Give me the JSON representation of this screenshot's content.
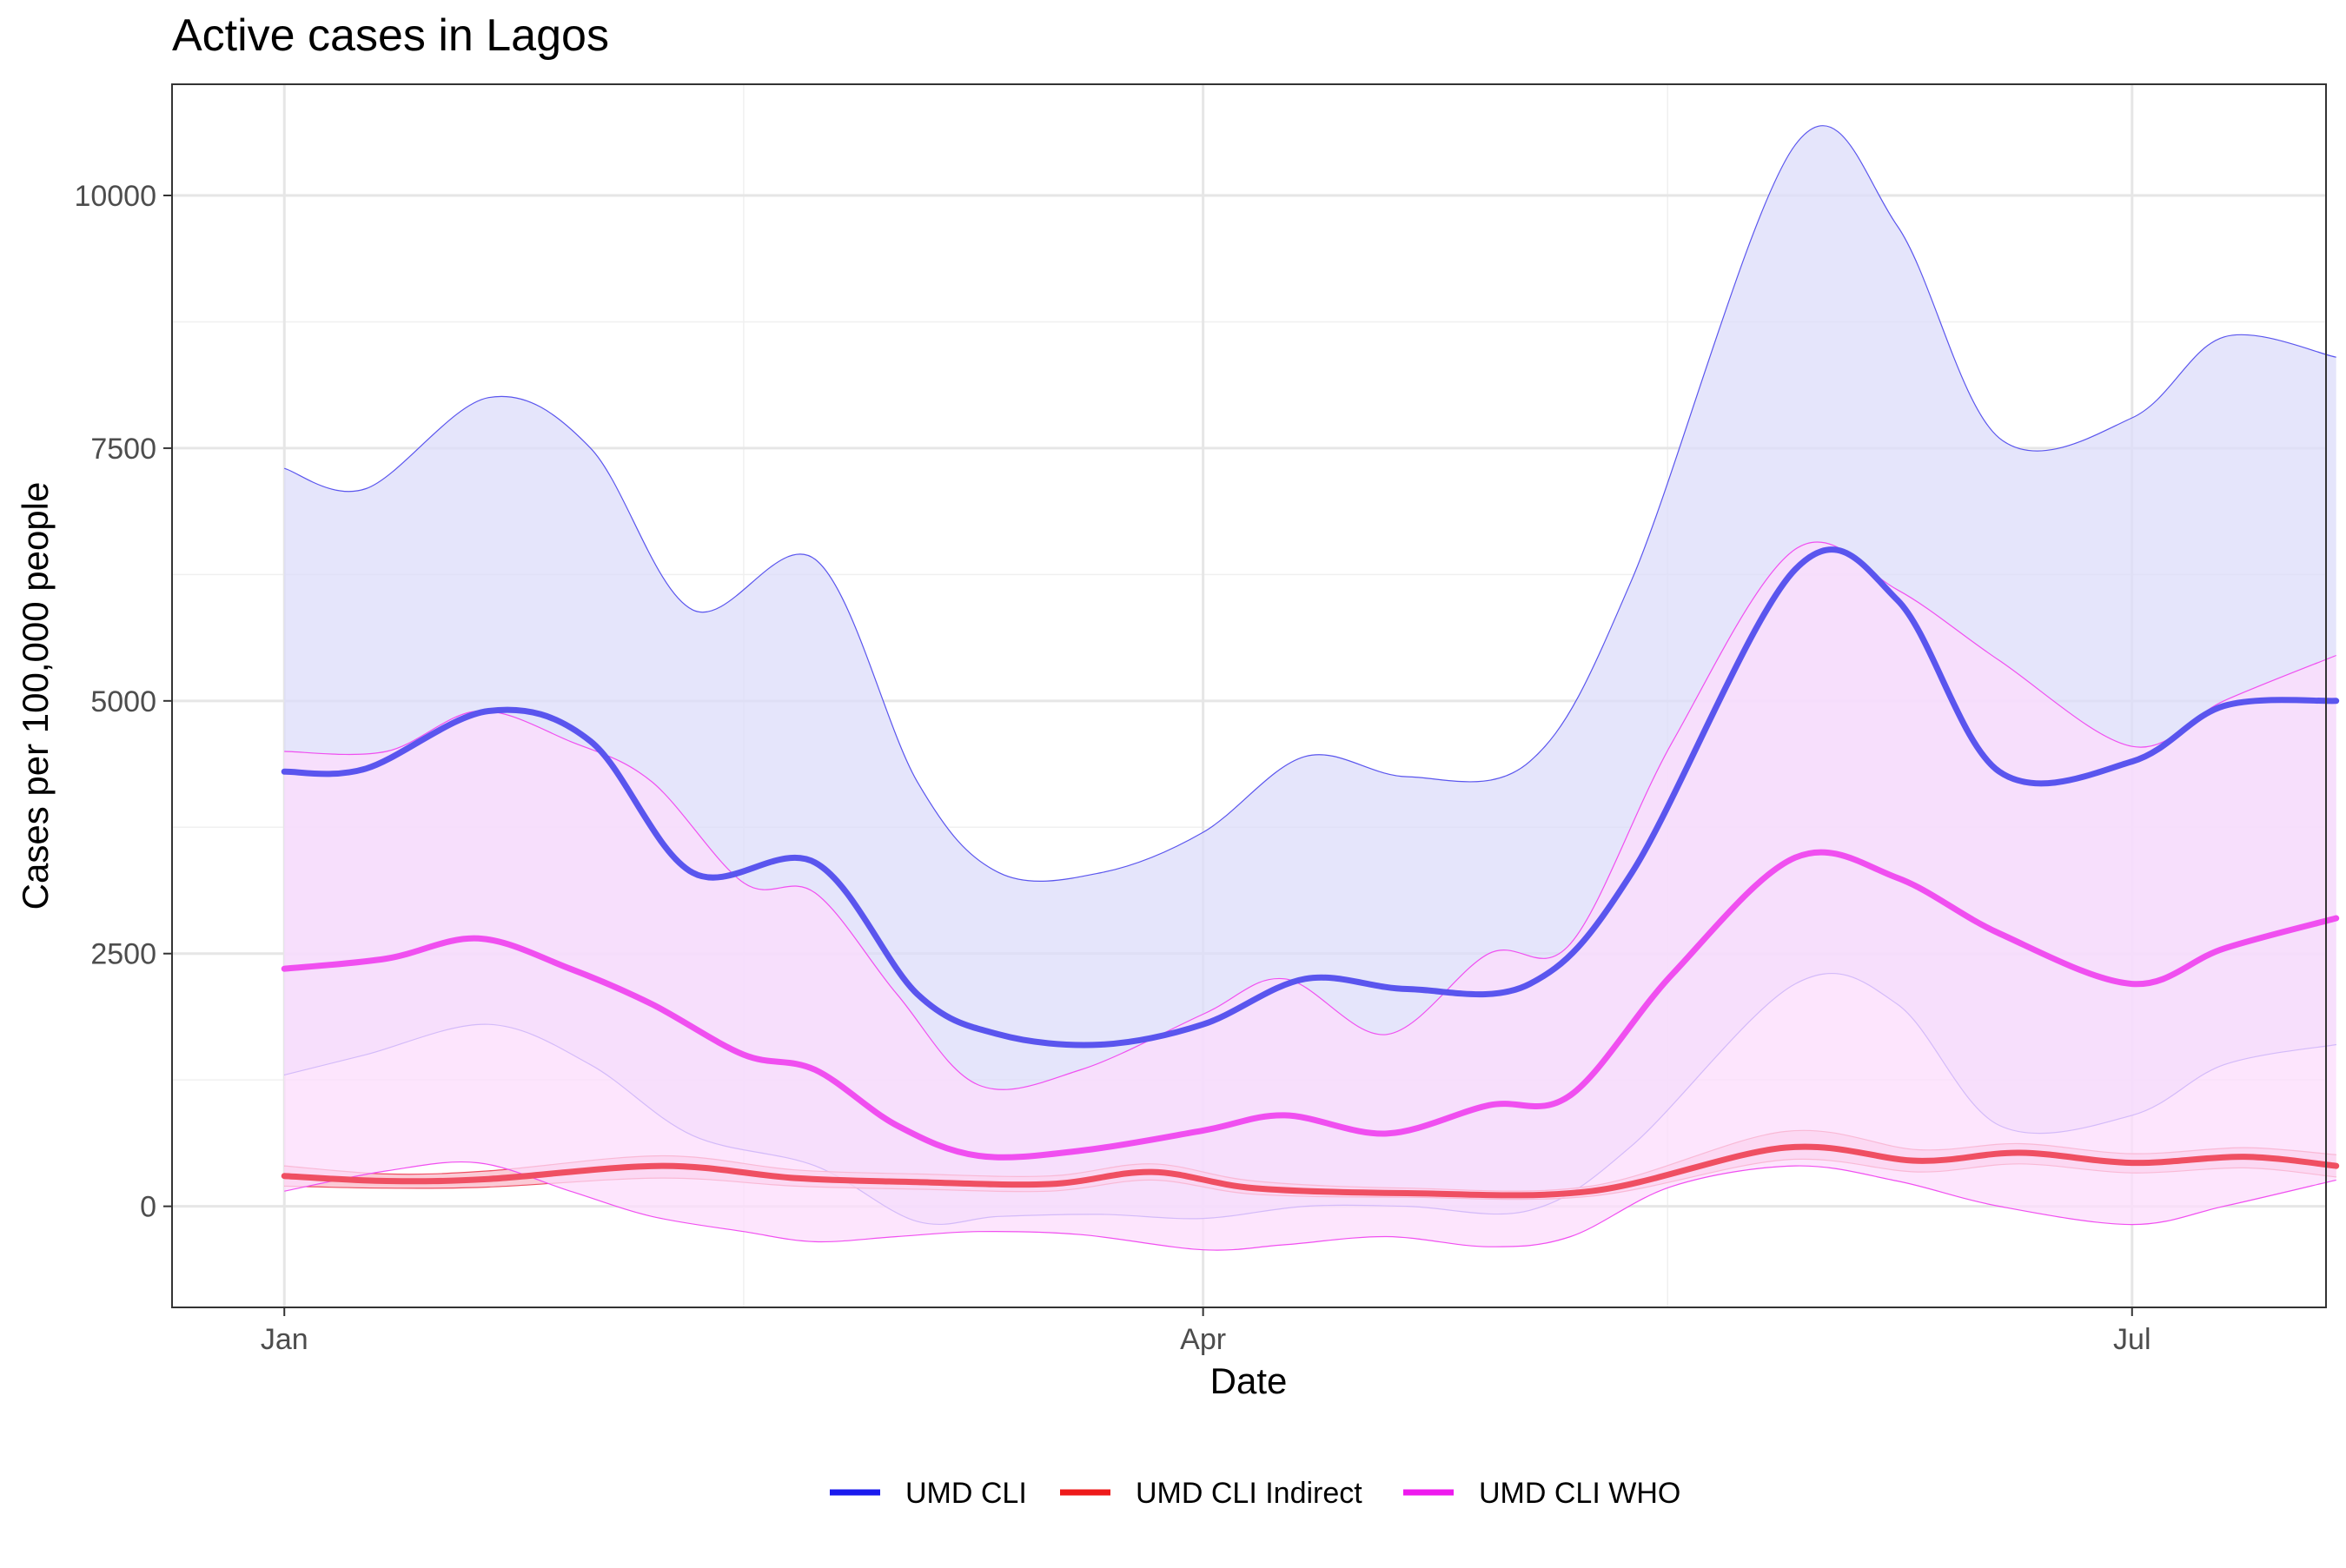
{
  "chart_data": {
    "type": "line",
    "title": "Active cases in Lagos",
    "xlabel": "Date",
    "ylabel": "Cases per 100,000 people",
    "ylim": [
      -1000,
      11100
    ],
    "xlim": [
      -11,
      200
    ],
    "x_ticks": [
      {
        "day": 0,
        "label": "Jan"
      },
      {
        "day": 90,
        "label": "Apr"
      },
      {
        "day": 181,
        "label": "Jul"
      }
    ],
    "x_minor_ticks": [
      45,
      135.5
    ],
    "y_ticks": [
      0,
      2500,
      5000,
      7500,
      10000
    ],
    "y_minor_ticks": [
      1250,
      3750,
      6250,
      8750
    ],
    "grid": true,
    "legend_position": "bottom",
    "series": [
      {
        "name": "UMD CLI",
        "color": "#1a1aee",
        "band_fill": "#dcdcfa",
        "line_color": "#5a55ee",
        "points": [
          {
            "x": 0,
            "y": 4300,
            "lo": 1300,
            "hi": 7300
          },
          {
            "x": 8,
            "y": 4330,
            "lo": 1500,
            "hi": 7100
          },
          {
            "x": 20,
            "y": 4900,
            "lo": 1800,
            "hi": 8000
          },
          {
            "x": 30,
            "y": 4600,
            "lo": 1400,
            "hi": 7500
          },
          {
            "x": 40,
            "y": 3300,
            "lo": 700,
            "hi": 5900
          },
          {
            "x": 52,
            "y": 3400,
            "lo": 400,
            "hi": 6400
          },
          {
            "x": 62,
            "y": 2100,
            "lo": -150,
            "hi": 4200
          },
          {
            "x": 70,
            "y": 1700,
            "lo": -100,
            "hi": 3300
          },
          {
            "x": 80,
            "y": 1600,
            "lo": -80,
            "hi": 3300
          },
          {
            "x": 90,
            "y": 1800,
            "lo": -120,
            "hi": 3700
          },
          {
            "x": 100,
            "y": 2250,
            "lo": 0,
            "hi": 4450
          },
          {
            "x": 110,
            "y": 2150,
            "lo": 0,
            "hi": 4250
          },
          {
            "x": 122,
            "y": 2200,
            "lo": -40,
            "hi": 4400
          },
          {
            "x": 132,
            "y": 3300,
            "lo": 600,
            "hi": 6200
          },
          {
            "x": 148,
            "y": 6300,
            "lo": 2200,
            "hi": 10500
          },
          {
            "x": 158,
            "y": 6000,
            "lo": 2000,
            "hi": 9700
          },
          {
            "x": 168,
            "y": 4300,
            "lo": 800,
            "hi": 7600
          },
          {
            "x": 181,
            "y": 4400,
            "lo": 900,
            "hi": 7800
          },
          {
            "x": 190,
            "y": 4950,
            "lo": 1400,
            "hi": 8600
          },
          {
            "x": 201,
            "y": 5000,
            "lo": 1600,
            "hi": 8400
          }
        ]
      },
      {
        "name": "UMD CLI Indirect",
        "color": "#ee1a1a",
        "band_fill": "#fab9c8",
        "line_color": "#ef4f62",
        "points": [
          {
            "x": 0,
            "y": 300,
            "lo": 200,
            "hi": 400
          },
          {
            "x": 10,
            "y": 250,
            "lo": 180,
            "hi": 320
          },
          {
            "x": 20,
            "y": 270,
            "lo": 190,
            "hi": 350
          },
          {
            "x": 37,
            "y": 400,
            "lo": 280,
            "hi": 500
          },
          {
            "x": 50,
            "y": 280,
            "lo": 200,
            "hi": 360
          },
          {
            "x": 62,
            "y": 240,
            "lo": 170,
            "hi": 320
          },
          {
            "x": 75,
            "y": 220,
            "lo": 150,
            "hi": 300
          },
          {
            "x": 85,
            "y": 340,
            "lo": 260,
            "hi": 420
          },
          {
            "x": 95,
            "y": 180,
            "lo": 120,
            "hi": 250
          },
          {
            "x": 110,
            "y": 130,
            "lo": 90,
            "hi": 180
          },
          {
            "x": 128,
            "y": 150,
            "lo": 100,
            "hi": 200
          },
          {
            "x": 147,
            "y": 580,
            "lo": 460,
            "hi": 740
          },
          {
            "x": 160,
            "y": 450,
            "lo": 340,
            "hi": 560
          },
          {
            "x": 170,
            "y": 530,
            "lo": 420,
            "hi": 620
          },
          {
            "x": 181,
            "y": 430,
            "lo": 330,
            "hi": 520
          },
          {
            "x": 192,
            "y": 490,
            "lo": 380,
            "hi": 580
          },
          {
            "x": 201,
            "y": 400,
            "lo": 290,
            "hi": 510
          }
        ]
      },
      {
        "name": "UMD CLI WHO",
        "color": "#ee1aee",
        "band_fill": "#fcdcfc",
        "line_color": "#f04ff0",
        "points": [
          {
            "x": 0,
            "y": 2350,
            "lo": 150,
            "hi": 4500
          },
          {
            "x": 10,
            "y": 2450,
            "lo": 350,
            "hi": 4500
          },
          {
            "x": 19,
            "y": 2650,
            "lo": 430,
            "hi": 4900
          },
          {
            "x": 28,
            "y": 2350,
            "lo": 150,
            "hi": 4600
          },
          {
            "x": 36,
            "y": 2000,
            "lo": -100,
            "hi": 4200
          },
          {
            "x": 45,
            "y": 1500,
            "lo": -250,
            "hi": 3200
          },
          {
            "x": 52,
            "y": 1350,
            "lo": -350,
            "hi": 3100
          },
          {
            "x": 60,
            "y": 800,
            "lo": -300,
            "hi": 2100
          },
          {
            "x": 68,
            "y": 500,
            "lo": -250,
            "hi": 1200
          },
          {
            "x": 78,
            "y": 550,
            "lo": -280,
            "hi": 1350
          },
          {
            "x": 90,
            "y": 750,
            "lo": -430,
            "hi": 1900
          },
          {
            "x": 98,
            "y": 900,
            "lo": -380,
            "hi": 2250
          },
          {
            "x": 108,
            "y": 720,
            "lo": -300,
            "hi": 1700
          },
          {
            "x": 118,
            "y": 1000,
            "lo": -400,
            "hi": 2500
          },
          {
            "x": 126,
            "y": 1100,
            "lo": -300,
            "hi": 2600
          },
          {
            "x": 136,
            "y": 2300,
            "lo": 200,
            "hi": 4600
          },
          {
            "x": 148,
            "y": 3450,
            "lo": 400,
            "hi": 6500
          },
          {
            "x": 158,
            "y": 3250,
            "lo": 250,
            "hi": 6100
          },
          {
            "x": 168,
            "y": 2700,
            "lo": 0,
            "hi": 5400
          },
          {
            "x": 181,
            "y": 2200,
            "lo": -180,
            "hi": 4550
          },
          {
            "x": 190,
            "y": 2550,
            "lo": 0,
            "hi": 5000
          },
          {
            "x": 201,
            "y": 2850,
            "lo": 260,
            "hi": 5450
          }
        ]
      }
    ]
  }
}
